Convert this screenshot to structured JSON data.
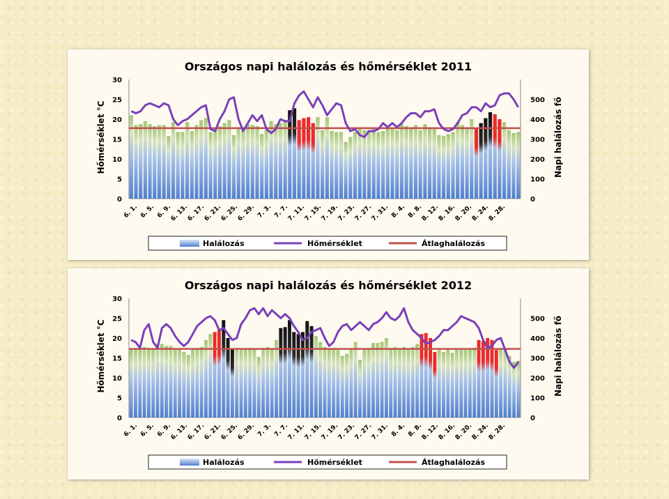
{
  "colors": {
    "bar_green": "#a4c676",
    "bar_blue": "#a9c4ea",
    "bar_red": "#ea2b2b",
    "bar_black": "#111111",
    "temp_line": "#7a3fba",
    "avg_line": "#c0504d"
  },
  "legend": {
    "deaths": "Halálozás",
    "temperature": "Hőmérséklet",
    "average": "Átlaghalálozás"
  },
  "chart_data": [
    {
      "type": "bar",
      "title": "Országos napi halálozás és hőmérséklet 2011",
      "ylabel_left": "Hőmérséklet °C",
      "ylabel_right": "Napi halálozás fő",
      "ylim_left": [
        0,
        30
      ],
      "yticks_left": [
        "0",
        "5",
        "10",
        "15",
        "20",
        "25",
        "30"
      ],
      "ylim_right": [
        0,
        600
      ],
      "yticks_right": [
        "0",
        "100",
        "200",
        "300",
        "400",
        "500"
      ],
      "xtick_labels": [
        "6. 1.",
        "6. 5.",
        "6. 9.",
        "6. 13.",
        "6. 17.",
        "6. 21.",
        "6. 25.",
        "6. 29.",
        "7. 3.",
        "7. 7.",
        "7. 11.",
        "7. 15.",
        "7. 19.",
        "7. 23.",
        "7. 27.",
        "7. 31.",
        "8. 4.",
        "8. 8.",
        "8. 12.",
        "8. 16.",
        "8. 20.",
        "8. 24.",
        "8. 28."
      ],
      "average": 355,
      "deaths": [
        420,
        370,
        375,
        390,
        375,
        365,
        370,
        370,
        315,
        385,
        335,
        335,
        385,
        340,
        370,
        395,
        405,
        335,
        345,
        365,
        380,
        395,
        320,
        360,
        355,
        375,
        370,
        365,
        325,
        345,
        390,
        375,
        380,
        390,
        445,
        455,
        395,
        405,
        410,
        380,
        410,
        345,
        410,
        340,
        335,
        335,
        285,
        310,
        335,
        355,
        345,
        345,
        350,
        335,
        340,
        355,
        355,
        345,
        375,
        365,
        355,
        370,
        345,
        375,
        350,
        350,
        320,
        315,
        325,
        335,
        385,
        370,
        360,
        400,
        355,
        380,
        405,
        435,
        425,
        400,
        385,
        345,
        330,
        335
      ],
      "colors": [
        "g",
        "g",
        "g",
        "g",
        "g",
        "g",
        "g",
        "g",
        "g",
        "g",
        "g",
        "g",
        "g",
        "g",
        "g",
        "g",
        "g",
        "g",
        "g",
        "g",
        "g",
        "g",
        "g",
        "g",
        "g",
        "g",
        "g",
        "g",
        "g",
        "g",
        "g",
        "g",
        "g",
        "g",
        "k",
        "k",
        "r",
        "r",
        "r",
        "r",
        "g",
        "g",
        "g",
        "g",
        "g",
        "g",
        "g",
        "g",
        "g",
        "g",
        "g",
        "g",
        "g",
        "g",
        "g",
        "g",
        "g",
        "g",
        "g",
        "g",
        "g",
        "g",
        "g",
        "g",
        "g",
        "g",
        "g",
        "g",
        "g",
        "g",
        "g",
        "g",
        "g",
        "g",
        "r",
        "k",
        "k",
        "k",
        "r",
        "r",
        "g",
        "g",
        "g",
        "g"
      ],
      "temperature": [
        22,
        21.5,
        22,
        23.5,
        24,
        23.5,
        23,
        24,
        23.5,
        20,
        18.5,
        19.5,
        20,
        21,
        22,
        23,
        23.5,
        17.5,
        17,
        20,
        22,
        25,
        25.5,
        20,
        17,
        19,
        21,
        19.5,
        21,
        17.5,
        16.5,
        17.5,
        20,
        19.5,
        19.5,
        24,
        26,
        27,
        25,
        23,
        25.5,
        23.5,
        21,
        22.5,
        24,
        23.5,
        19,
        17,
        17.5,
        16,
        15.5,
        17,
        17,
        17.5,
        19,
        18,
        19,
        18,
        19,
        20.5,
        21.5,
        21.5,
        20.5,
        22,
        22,
        22.5,
        19,
        17.5,
        17,
        17.5,
        19,
        21,
        21.5,
        23,
        23,
        22,
        24,
        23,
        23.5,
        26,
        26.5,
        26.5,
        25,
        23
      ]
    },
    {
      "type": "bar",
      "title": "Országos napi halálozás és hőmérséklet 2012",
      "ylabel_left": "Hőmérséklet °C",
      "ylabel_right": "Napi halálozás fő",
      "ylim_left": [
        0,
        30
      ],
      "yticks_left": [
        "0",
        "5",
        "10",
        "15",
        "20",
        "25",
        "30"
      ],
      "ylim_right": [
        0,
        600
      ],
      "yticks_right": [
        "0",
        "100",
        "200",
        "300",
        "400",
        "500"
      ],
      "xtick_labels": [
        "6. 1.",
        "6. 5.",
        "6. 9.",
        "6. 13.",
        "6. 17.",
        "6. 21.",
        "6. 25.",
        "6. 29.",
        "7. 3.",
        "7. 7.",
        "7. 11.",
        "7. 15.",
        "7. 19.",
        "7. 23.",
        "7. 27.",
        "7. 31.",
        "8. 4.",
        "8. 8.",
        "8. 12.",
        "8. 16.",
        "8. 20.",
        "8. 24.",
        "8. 28."
      ],
      "average": 345,
      "deaths": [
        340,
        350,
        345,
        355,
        345,
        345,
        370,
        370,
        360,
        360,
        340,
        345,
        330,
        315,
        340,
        350,
        355,
        390,
        420,
        430,
        440,
        490,
        400,
        345,
        350,
        345,
        345,
        350,
        345,
        305,
        350,
        355,
        345,
        390,
        450,
        455,
        490,
        430,
        420,
        430,
        485,
        460,
        410,
        380,
        355,
        345,
        350,
        340,
        310,
        320,
        345,
        380,
        290,
        345,
        345,
        375,
        375,
        380,
        400,
        350,
        355,
        350,
        355,
        345,
        355,
        370,
        420,
        425,
        400,
        330,
        340,
        330,
        345,
        325,
        345,
        340,
        340,
        340,
        350,
        390,
        385,
        400,
        390,
        340,
        350,
        345,
        310,
        280,
        285
      ],
      "colors": [
        "g",
        "g",
        "g",
        "g",
        "g",
        "g",
        "g",
        "g",
        "g",
        "g",
        "g",
        "g",
        "g",
        "g",
        "g",
        "g",
        "g",
        "g",
        "g",
        "r",
        "r",
        "k",
        "k",
        "k",
        "g",
        "g",
        "g",
        "g",
        "g",
        "g",
        "g",
        "g",
        "g",
        "g",
        "k",
        "k",
        "k",
        "k",
        "k",
        "k",
        "k",
        "k",
        "g",
        "g",
        "g",
        "g",
        "g",
        "g",
        "g",
        "g",
        "g",
        "g",
        "g",
        "g",
        "g",
        "g",
        "g",
        "g",
        "g",
        "g",
        "g",
        "g",
        "g",
        "g",
        "g",
        "g",
        "r",
        "r",
        "r",
        "r",
        "g",
        "g",
        "g",
        "g",
        "g",
        "g",
        "g",
        "g",
        "g",
        "r",
        "r",
        "r",
        "r",
        "r",
        "g",
        "g",
        "g",
        "g",
        "g"
      ],
      "temperature": [
        19.5,
        19,
        17.5,
        22,
        23.5,
        19,
        17.5,
        22.5,
        23.5,
        22.5,
        20.5,
        19,
        18,
        19,
        21,
        23,
        24,
        25,
        25.5,
        24.5,
        22,
        22.5,
        21,
        19.5,
        20,
        23.5,
        25,
        27,
        27.5,
        26,
        27.5,
        25.5,
        27,
        26,
        25,
        26,
        25,
        23,
        21.5,
        19.5,
        20,
        21.5,
        22,
        22.5,
        20,
        18,
        19,
        21.5,
        23,
        23.5,
        22,
        23,
        24,
        23,
        22,
        23.5,
        24,
        25,
        26.5,
        25,
        24.5,
        25.5,
        27.5,
        24,
        22,
        21,
        20,
        18.5,
        19,
        19.5,
        20.5,
        22,
        22,
        23,
        24,
        25.5,
        25,
        24.5,
        24,
        22.5,
        19.5,
        17.5,
        18,
        19.5,
        20,
        17,
        14,
        12.5,
        14
      ]
    }
  ]
}
